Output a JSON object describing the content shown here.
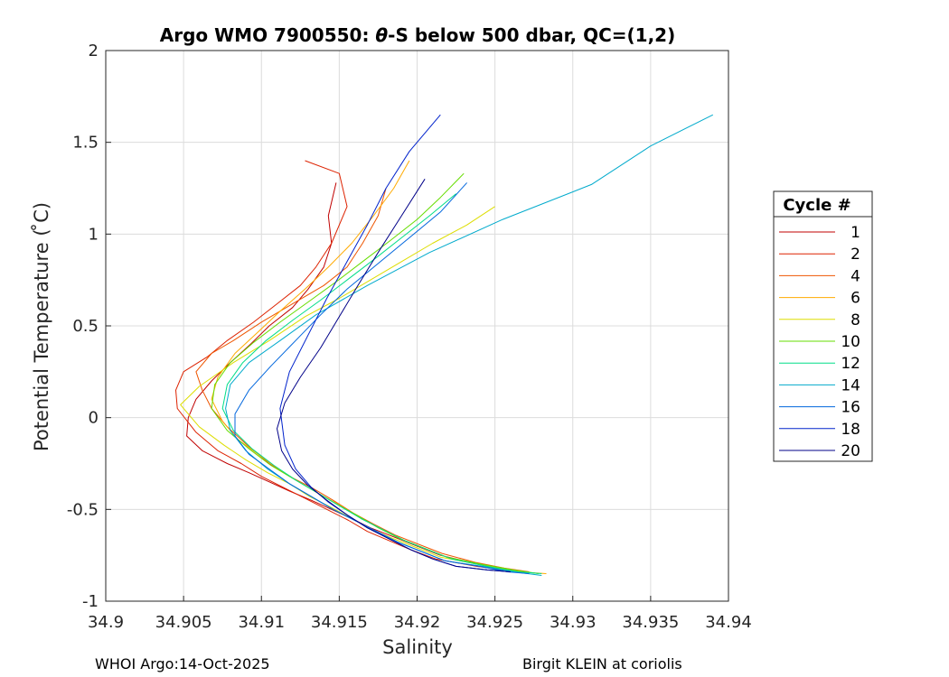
{
  "chart_data": {
    "type": "line",
    "title_prefix": "Argo WMO 7900550: ",
    "title_theta": "θ",
    "title_suffix": "-S below 500 dbar,  QC=(1,2)",
    "xlabel": "Salinity",
    "ylabel": "Potential Temperature ( ̊C)",
    "xlim": [
      34.9,
      34.94
    ],
    "ylim": [
      -1,
      2
    ],
    "grid": true,
    "xticks": [
      "34.9",
      "34.905",
      "34.91",
      "34.915",
      "34.92",
      "34.925",
      "34.93",
      "34.935",
      "34.94"
    ],
    "yticks": [
      "-1",
      "-0.5",
      "0",
      "0.5",
      "1",
      "1.5",
      "2"
    ],
    "legend_title": "Cycle #",
    "legend_position": "right",
    "series": [
      {
        "name": "1",
        "color": "#c00000",
        "x": [
          34.9148,
          34.9143,
          34.9145,
          34.914,
          34.913,
          34.912,
          34.9105,
          34.9093,
          34.908,
          34.9068,
          34.9058,
          34.9053,
          34.9052,
          34.9062,
          34.9078,
          34.9092,
          34.9105,
          34.9118,
          34.9132,
          34.9145,
          34.9158,
          34.917,
          34.9185,
          34.92,
          34.9215,
          34.924,
          34.9255,
          34.927
        ],
        "y": [
          1.28,
          1.1,
          0.95,
          0.82,
          0.7,
          0.6,
          0.5,
          0.4,
          0.3,
          0.2,
          0.1,
          0.0,
          -0.1,
          -0.18,
          -0.25,
          -0.3,
          -0.35,
          -0.4,
          -0.45,
          -0.5,
          -0.55,
          -0.6,
          -0.65,
          -0.7,
          -0.75,
          -0.8,
          -0.83,
          -0.84
        ]
      },
      {
        "name": "2",
        "color": "#dd2200",
        "x": [
          34.9128,
          34.915,
          34.9155,
          34.9145,
          34.9135,
          34.9125,
          34.911,
          34.9095,
          34.9078,
          34.9065,
          34.905,
          34.9045,
          34.9046,
          34.9058,
          34.9072,
          34.9087,
          34.91,
          34.9114,
          34.9128,
          34.9142,
          34.9156,
          34.9168,
          34.9182,
          34.9196,
          34.9212,
          34.9238,
          34.9255,
          34.927
        ],
        "y": [
          1.4,
          1.33,
          1.15,
          0.95,
          0.82,
          0.72,
          0.62,
          0.52,
          0.42,
          0.33,
          0.25,
          0.15,
          0.05,
          -0.08,
          -0.18,
          -0.25,
          -0.32,
          -0.38,
          -0.44,
          -0.5,
          -0.56,
          -0.62,
          -0.67,
          -0.72,
          -0.77,
          -0.81,
          -0.83,
          -0.84
        ]
      },
      {
        "name": "4",
        "color": "#ee5500",
        "x": [
          34.918,
          34.9175,
          34.9165,
          34.9155,
          34.914,
          34.912,
          34.91,
          34.9082,
          34.9068,
          34.9058,
          34.9062,
          34.9068,
          34.9078,
          34.9091,
          34.9105,
          34.9118,
          34.9132,
          34.9146,
          34.9159,
          34.9172,
          34.9186,
          34.9201,
          34.9216,
          34.9238,
          34.9256,
          34.9272
        ],
        "y": [
          1.25,
          1.1,
          0.95,
          0.82,
          0.72,
          0.62,
          0.52,
          0.42,
          0.35,
          0.25,
          0.15,
          0.05,
          -0.05,
          -0.15,
          -0.25,
          -0.32,
          -0.38,
          -0.45,
          -0.52,
          -0.58,
          -0.64,
          -0.69,
          -0.74,
          -0.79,
          -0.82,
          -0.84
        ]
      },
      {
        "name": "6",
        "color": "#ffaa00",
        "x": [
          34.9195,
          34.9185,
          34.9172,
          34.9158,
          34.9143,
          34.9128,
          34.9112,
          34.9097,
          34.9083,
          34.9072,
          34.9068,
          34.9075,
          34.9085,
          34.9098,
          34.9111,
          34.9124,
          34.9138,
          34.9151,
          34.9164,
          34.9178,
          34.9192,
          34.9207,
          34.9222,
          34.9245,
          34.9265,
          34.9283
        ],
        "y": [
          1.4,
          1.25,
          1.1,
          0.95,
          0.82,
          0.7,
          0.58,
          0.46,
          0.35,
          0.22,
          0.1,
          -0.02,
          -0.12,
          -0.2,
          -0.28,
          -0.35,
          -0.42,
          -0.48,
          -0.55,
          -0.61,
          -0.67,
          -0.72,
          -0.77,
          -0.81,
          -0.84,
          -0.85
        ]
      },
      {
        "name": "8",
        "color": "#dddd00",
        "x": [
          34.925,
          34.9232,
          34.921,
          34.919,
          34.917,
          34.915,
          34.9128,
          34.9105,
          34.9082,
          34.906,
          34.9048,
          34.906,
          34.9076,
          34.909,
          34.9104,
          34.9118,
          34.9131,
          34.9145,
          34.9158,
          34.9171,
          34.9185,
          34.92,
          34.9215,
          34.924,
          34.926,
          34.9278
        ],
        "y": [
          1.15,
          1.05,
          0.95,
          0.85,
          0.75,
          0.65,
          0.55,
          0.42,
          0.3,
          0.17,
          0.07,
          -0.05,
          -0.15,
          -0.23,
          -0.3,
          -0.36,
          -0.43,
          -0.49,
          -0.55,
          -0.61,
          -0.66,
          -0.71,
          -0.76,
          -0.8,
          -0.83,
          -0.85
        ]
      },
      {
        "name": "10",
        "color": "#66dd00",
        "x": [
          34.923,
          34.9215,
          34.92,
          34.9182,
          34.9165,
          34.9148,
          34.913,
          34.9112,
          34.9095,
          34.908,
          34.907,
          34.9068,
          34.9078,
          34.9092,
          34.9106,
          34.912,
          34.9134,
          34.9148,
          34.9161,
          34.9175,
          34.9189,
          34.9204,
          34.9219,
          34.9242,
          34.9262,
          34.9278
        ],
        "y": [
          1.33,
          1.2,
          1.08,
          0.96,
          0.85,
          0.74,
          0.63,
          0.52,
          0.41,
          0.3,
          0.18,
          0.05,
          -0.07,
          -0.17,
          -0.26,
          -0.33,
          -0.4,
          -0.47,
          -0.53,
          -0.6,
          -0.66,
          -0.71,
          -0.76,
          -0.8,
          -0.83,
          -0.85
        ]
      },
      {
        "name": "12",
        "color": "#00dd88",
        "x": [
          34.9225,
          34.9208,
          34.919,
          34.9172,
          34.9155,
          34.9138,
          34.912,
          34.9103,
          34.9088,
          34.9078,
          34.9075,
          34.9082,
          34.9094,
          34.9108,
          34.9122,
          34.9136,
          34.915,
          34.9164,
          34.9178,
          34.9192,
          34.9207,
          34.9222,
          34.9245,
          34.9265,
          34.928
        ],
        "y": [
          1.22,
          1.1,
          0.98,
          0.86,
          0.75,
          0.64,
          0.53,
          0.42,
          0.3,
          0.18,
          0.05,
          -0.07,
          -0.17,
          -0.26,
          -0.34,
          -0.41,
          -0.48,
          -0.55,
          -0.61,
          -0.67,
          -0.72,
          -0.77,
          -0.81,
          -0.84,
          -0.85
        ]
      },
      {
        "name": "14",
        "color": "#00aacc",
        "x": [
          34.939,
          34.935,
          34.9312,
          34.9255,
          34.9208,
          34.9168,
          34.9135,
          34.9112,
          34.9092,
          34.908,
          34.9077,
          34.908,
          34.909,
          34.9104,
          34.9118,
          34.9132,
          34.9146,
          34.916,
          34.9174,
          34.9188,
          34.9203,
          34.9218,
          34.9242,
          34.9262,
          34.928
        ],
        "y": [
          1.65,
          1.48,
          1.27,
          1.08,
          0.9,
          0.72,
          0.56,
          0.42,
          0.3,
          0.18,
          0.05,
          -0.07,
          -0.18,
          -0.28,
          -0.36,
          -0.43,
          -0.5,
          -0.56,
          -0.62,
          -0.68,
          -0.73,
          -0.78,
          -0.81,
          -0.84,
          -0.86
        ]
      },
      {
        "name": "16",
        "color": "#0066dd",
        "x": [
          34.9232,
          34.9215,
          34.9195,
          34.9175,
          34.9155,
          34.9138,
          34.9122,
          34.9106,
          34.9092,
          34.9083,
          34.9083,
          34.9092,
          34.9105,
          34.9118,
          34.9132,
          34.9146,
          34.916,
          34.9174,
          34.9188,
          34.9203,
          34.9218,
          34.924,
          34.9258,
          34.9272
        ],
        "y": [
          1.28,
          1.12,
          0.98,
          0.84,
          0.7,
          0.56,
          0.42,
          0.28,
          0.15,
          0.02,
          -0.1,
          -0.2,
          -0.28,
          -0.36,
          -0.43,
          -0.5,
          -0.56,
          -0.62,
          -0.68,
          -0.73,
          -0.78,
          -0.81,
          -0.84,
          -0.85
        ]
      },
      {
        "name": "18",
        "color": "#0022cc",
        "x": [
          34.9215,
          34.9195,
          34.918,
          34.9168,
          34.9155,
          34.9142,
          34.913,
          34.9118,
          34.9112,
          34.9115,
          34.9122,
          34.9132,
          34.9143,
          34.9155,
          34.9168,
          34.9182,
          34.9196,
          34.921,
          34.9225,
          34.9245,
          34.926
        ],
        "y": [
          1.65,
          1.45,
          1.25,
          1.05,
          0.85,
          0.65,
          0.45,
          0.25,
          0.05,
          -0.15,
          -0.28,
          -0.38,
          -0.46,
          -0.53,
          -0.6,
          -0.66,
          -0.72,
          -0.77,
          -0.81,
          -0.83,
          -0.84
        ]
      },
      {
        "name": "20",
        "color": "#000088",
        "x": [
          34.9205,
          34.919,
          34.9175,
          34.9162,
          34.915,
          34.9138,
          34.9125,
          34.9115,
          34.911,
          34.9113,
          34.912,
          34.913,
          34.9142,
          34.9155,
          34.9168,
          34.9182,
          34.9196,
          34.921,
          34.9225,
          34.9245,
          34.926
        ],
        "y": [
          1.3,
          1.1,
          0.9,
          0.72,
          0.55,
          0.38,
          0.22,
          0.08,
          -0.06,
          -0.18,
          -0.28,
          -0.37,
          -0.45,
          -0.53,
          -0.6,
          -0.66,
          -0.72,
          -0.77,
          -0.81,
          -0.83,
          -0.84
        ]
      }
    ]
  },
  "footer": {
    "left": "WHOI Argo:14-Oct-2025",
    "right": "Birgit KLEIN at coriolis"
  }
}
